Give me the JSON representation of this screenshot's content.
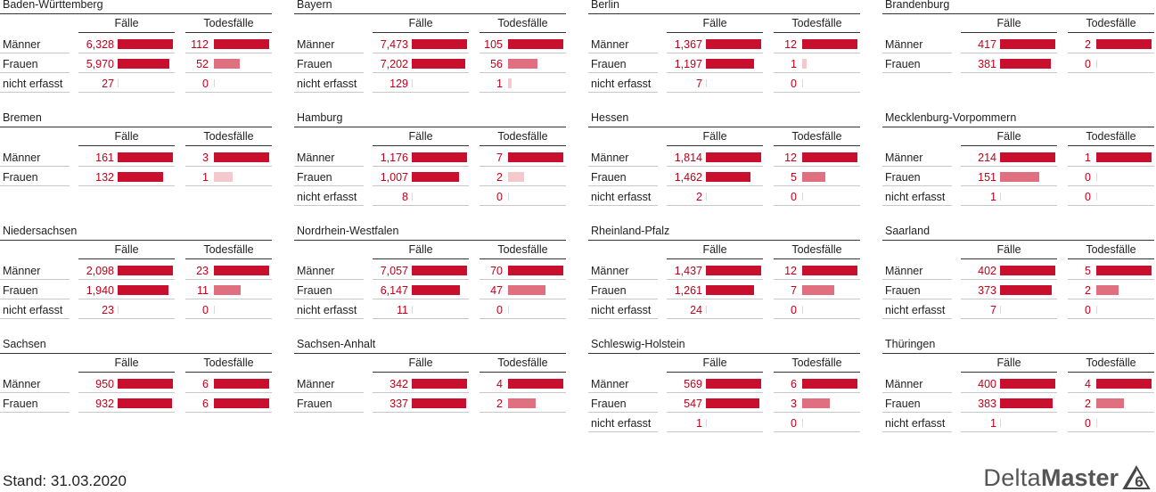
{
  "chart_data": {
    "type": "bar",
    "column_headers": [
      "Fälle",
      "Todesfälle"
    ],
    "colors": {
      "primary": "#c8102e",
      "medium": "#e07080",
      "light": "#f3c9ce"
    },
    "panels": [
      {
        "name": "Baden-Württemberg",
        "rows": [
          {
            "label": "Männer",
            "faelle": "6,328",
            "todesfaelle": "112"
          },
          {
            "label": "Frauen",
            "faelle": "5,970",
            "todesfaelle": "52"
          },
          {
            "label": "nicht erfasst",
            "faelle": "27",
            "todesfaelle": "0"
          }
        ]
      },
      {
        "name": "Bayern",
        "rows": [
          {
            "label": "Männer",
            "faelle": "7,473",
            "todesfaelle": "105"
          },
          {
            "label": "Frauen",
            "faelle": "7,202",
            "todesfaelle": "56"
          },
          {
            "label": "nicht erfasst",
            "faelle": "129",
            "todesfaelle": "1"
          }
        ]
      },
      {
        "name": "Berlin",
        "rows": [
          {
            "label": "Männer",
            "faelle": "1,367",
            "todesfaelle": "12"
          },
          {
            "label": "Frauen",
            "faelle": "1,197",
            "todesfaelle": "1"
          },
          {
            "label": "nicht erfasst",
            "faelle": "7",
            "todesfaelle": "0"
          }
        ]
      },
      {
        "name": "Brandenburg",
        "rows": [
          {
            "label": "Männer",
            "faelle": "417",
            "todesfaelle": "2"
          },
          {
            "label": "Frauen",
            "faelle": "381",
            "todesfaelle": "0"
          }
        ]
      },
      {
        "name": "Bremen",
        "rows": [
          {
            "label": "Männer",
            "faelle": "161",
            "todesfaelle": "3"
          },
          {
            "label": "Frauen",
            "faelle": "132",
            "todesfaelle": "1"
          }
        ]
      },
      {
        "name": "Hamburg",
        "rows": [
          {
            "label": "Männer",
            "faelle": "1,176",
            "todesfaelle": "7"
          },
          {
            "label": "Frauen",
            "faelle": "1,007",
            "todesfaelle": "2"
          },
          {
            "label": "nicht erfasst",
            "faelle": "8",
            "todesfaelle": "0"
          }
        ]
      },
      {
        "name": "Hessen",
        "rows": [
          {
            "label": "Männer",
            "faelle": "1,814",
            "todesfaelle": "12"
          },
          {
            "label": "Frauen",
            "faelle": "1,462",
            "todesfaelle": "5"
          },
          {
            "label": "nicht erfasst",
            "faelle": "2",
            "todesfaelle": "0"
          }
        ]
      },
      {
        "name": "Mecklenburg-Vorpommern",
        "rows": [
          {
            "label": "Männer",
            "faelle": "214",
            "todesfaelle": "1"
          },
          {
            "label": "Frauen",
            "faelle": "151",
            "todesfaelle": "0"
          },
          {
            "label": "nicht erfasst",
            "faelle": "1",
            "todesfaelle": "0"
          }
        ]
      },
      {
        "name": "Niedersachsen",
        "rows": [
          {
            "label": "Männer",
            "faelle": "2,098",
            "todesfaelle": "23"
          },
          {
            "label": "Frauen",
            "faelle": "1,940",
            "todesfaelle": "11"
          },
          {
            "label": "nicht erfasst",
            "faelle": "23",
            "todesfaelle": "0"
          }
        ]
      },
      {
        "name": "Nordrhein-Westfalen",
        "rows": [
          {
            "label": "Männer",
            "faelle": "7,057",
            "todesfaelle": "70"
          },
          {
            "label": "Frauen",
            "faelle": "6,147",
            "todesfaelle": "47"
          },
          {
            "label": "nicht erfasst",
            "faelle": "11",
            "todesfaelle": "0"
          }
        ]
      },
      {
        "name": "Rheinland-Pfalz",
        "rows": [
          {
            "label": "Männer",
            "faelle": "1,437",
            "todesfaelle": "12"
          },
          {
            "label": "Frauen",
            "faelle": "1,261",
            "todesfaelle": "7"
          },
          {
            "label": "nicht erfasst",
            "faelle": "24",
            "todesfaelle": "0"
          }
        ]
      },
      {
        "name": "Saarland",
        "rows": [
          {
            "label": "Männer",
            "faelle": "402",
            "todesfaelle": "5"
          },
          {
            "label": "Frauen",
            "faelle": "373",
            "todesfaelle": "2"
          },
          {
            "label": "nicht erfasst",
            "faelle": "7",
            "todesfaelle": "0"
          }
        ]
      },
      {
        "name": "Sachsen",
        "rows": [
          {
            "label": "Männer",
            "faelle": "950",
            "todesfaelle": "6"
          },
          {
            "label": "Frauen",
            "faelle": "932",
            "todesfaelle": "6"
          }
        ]
      },
      {
        "name": "Sachsen-Anhalt",
        "rows": [
          {
            "label": "Männer",
            "faelle": "342",
            "todesfaelle": "4"
          },
          {
            "label": "Frauen",
            "faelle": "337",
            "todesfaelle": "2"
          }
        ]
      },
      {
        "name": "Schleswig-Holstein",
        "rows": [
          {
            "label": "Männer",
            "faelle": "569",
            "todesfaelle": "6"
          },
          {
            "label": "Frauen",
            "faelle": "547",
            "todesfaelle": "3"
          },
          {
            "label": "nicht erfasst",
            "faelle": "1",
            "todesfaelle": "0"
          }
        ]
      },
      {
        "name": "Thüringen",
        "rows": [
          {
            "label": "Männer",
            "faelle": "400",
            "todesfaelle": "4"
          },
          {
            "label": "Frauen",
            "faelle": "383",
            "todesfaelle": "2"
          },
          {
            "label": "nicht erfasst",
            "faelle": "1",
            "todesfaelle": "0"
          }
        ]
      }
    ]
  },
  "footer": {
    "stand": "Stand: 31.03.2020",
    "logo_delta": "Delta",
    "logo_master": "Master",
    "logo_version": "6"
  }
}
